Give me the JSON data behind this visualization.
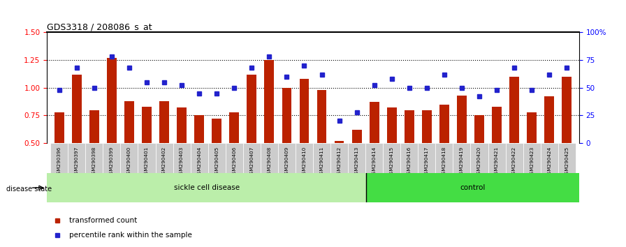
{
  "title": "GDS3318 / 208086_s_at",
  "samples": [
    "GSM290396",
    "GSM290397",
    "GSM290398",
    "GSM290399",
    "GSM290400",
    "GSM290401",
    "GSM290402",
    "GSM290403",
    "GSM290404",
    "GSM290405",
    "GSM290406",
    "GSM290407",
    "GSM290408",
    "GSM290409",
    "GSM290410",
    "GSM290411",
    "GSM290412",
    "GSM290413",
    "GSM290414",
    "GSM290415",
    "GSM290416",
    "GSM290417",
    "GSM290418",
    "GSM290419",
    "GSM290420",
    "GSM290421",
    "GSM290422",
    "GSM290423",
    "GSM290424",
    "GSM290425"
  ],
  "bar_values": [
    0.78,
    1.12,
    0.8,
    1.27,
    0.88,
    0.83,
    0.88,
    0.82,
    0.75,
    0.72,
    0.78,
    1.12,
    1.25,
    1.0,
    1.08,
    0.98,
    0.52,
    0.62,
    0.87,
    0.82,
    0.8,
    0.8,
    0.85,
    0.93,
    0.75,
    0.83,
    1.1,
    0.78,
    0.92,
    1.1
  ],
  "percentile_values": [
    48,
    68,
    50,
    78,
    68,
    55,
    55,
    52,
    45,
    45,
    50,
    68,
    78,
    60,
    70,
    62,
    20,
    28,
    52,
    58,
    50,
    50,
    62,
    50,
    42,
    48,
    68,
    48,
    62,
    68
  ],
  "sickle_count": 18,
  "control_count": 12,
  "bar_color": "#bb2200",
  "square_color": "#2222cc",
  "sickle_color": "#bbeeaa",
  "control_color": "#44dd44",
  "ylim_left": [
    0.5,
    1.5
  ],
  "ylim_right": [
    0,
    100
  ],
  "yticks_left": [
    0.5,
    0.75,
    1.0,
    1.25,
    1.5
  ],
  "yticks_right": [
    0,
    25,
    50,
    75,
    100
  ],
  "ylabel_right_labels": [
    "0",
    "25",
    "50",
    "75",
    "100%"
  ],
  "hlines": [
    0.75,
    1.0,
    1.25
  ],
  "legend_bar_label": "transformed count",
  "legend_sq_label": "percentile rank within the sample",
  "disease_state_label": "disease state",
  "sickle_label": "sickle cell disease",
  "control_label": "control"
}
